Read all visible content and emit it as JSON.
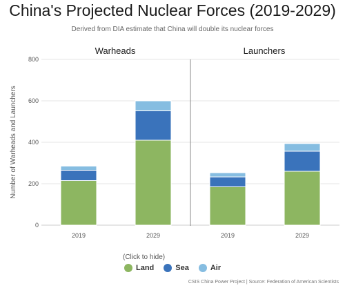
{
  "title": "China's Projected Nuclear Forces (2019-2029)",
  "subtitle": "Derived from DIA estimate that China will double its nuclear forces",
  "legend_hint": "(Click to hide)",
  "source": "CSIS China Power Project | Source: Federation of American Scientists",
  "chart_data": {
    "type": "bar",
    "stacked": true,
    "ylabel": "Number of Warheads and Launchers",
    "ylim": [
      0,
      800
    ],
    "yticks": [
      0,
      200,
      400,
      600,
      800
    ],
    "grid": true,
    "legend_position": "bottom",
    "panels": [
      {
        "title": "Warheads",
        "categories": [
          "2019",
          "2029"
        ],
        "series": [
          {
            "name": "Land",
            "values": [
              215,
              410
            ]
          },
          {
            "name": "Sea",
            "values": [
              50,
              142
            ]
          },
          {
            "name": "Air",
            "values": [
              20,
              48
            ]
          }
        ]
      },
      {
        "title": "Launchers",
        "categories": [
          "2019",
          "2029"
        ],
        "series": [
          {
            "name": "Land",
            "values": [
              185,
              260
            ]
          },
          {
            "name": "Sea",
            "values": [
              48,
              97
            ]
          },
          {
            "name": "Air",
            "values": [
              20,
              37
            ]
          }
        ]
      }
    ],
    "colors": {
      "Land": "#8db661",
      "Sea": "#3a73bb",
      "Air": "#86bde1"
    }
  }
}
